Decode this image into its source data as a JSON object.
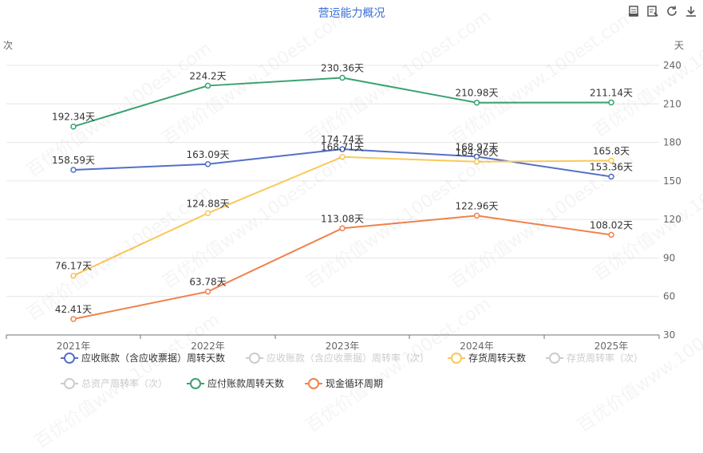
{
  "chart": {
    "title": "营运能力概况",
    "left_unit": "次",
    "right_unit": "天",
    "watermark": "百优价值www.100est.com"
  },
  "toolbar": {
    "icons": [
      "data-view-icon",
      "edit-view-icon",
      "refresh-icon",
      "download-icon"
    ]
  },
  "chart_data": {
    "type": "line",
    "categories": [
      "2021年",
      "2022年",
      "2023年",
      "2024年",
      "2025年"
    ],
    "y_right_ticks": [
      30,
      60,
      90,
      120,
      150,
      180,
      210,
      240
    ],
    "ylim_right": [
      30,
      240
    ],
    "label_suffix": "天",
    "grid": true,
    "legend_position": "bottom",
    "series": [
      {
        "name": "应收账款（含应收票据）周转天数",
        "color": "#5470c6",
        "visible": true,
        "values": [
          158.59,
          163.09,
          174.74,
          168.97,
          153.36
        ],
        "labels": [
          "158.59天",
          "163.09天",
          "174.74天",
          "168.97天",
          "153.36天"
        ]
      },
      {
        "name": "应收账款（含应收票据）周转率（次）",
        "color": "#cccccc",
        "visible": false
      },
      {
        "name": "存货周转天数",
        "color": "#fac858",
        "visible": true,
        "values": [
          76.17,
          124.88,
          168.71,
          164.96,
          165.8
        ],
        "labels": [
          "76.17天",
          "124.88天",
          "168.71天",
          "164.96天",
          "165.8天"
        ]
      },
      {
        "name": "存货周转率（次）",
        "color": "#cccccc",
        "visible": false
      },
      {
        "name": "总资产周转率（次）",
        "color": "#cccccc",
        "visible": false
      },
      {
        "name": "应付账款周转天数",
        "color": "#3ba272",
        "visible": true,
        "values": [
          192.34,
          224.2,
          230.36,
          210.98,
          211.14
        ],
        "labels": [
          "192.34天",
          "224.2天",
          "230.36天",
          "210.98天",
          "211.14天"
        ]
      },
      {
        "name": "现金循环周期",
        "color": "#f0824d",
        "visible": true,
        "values": [
          42.41,
          63.78,
          113.08,
          122.96,
          108.02
        ],
        "labels": [
          "42.41天",
          "63.78天",
          "113.08天",
          "122.96天",
          "108.02天"
        ]
      }
    ]
  }
}
